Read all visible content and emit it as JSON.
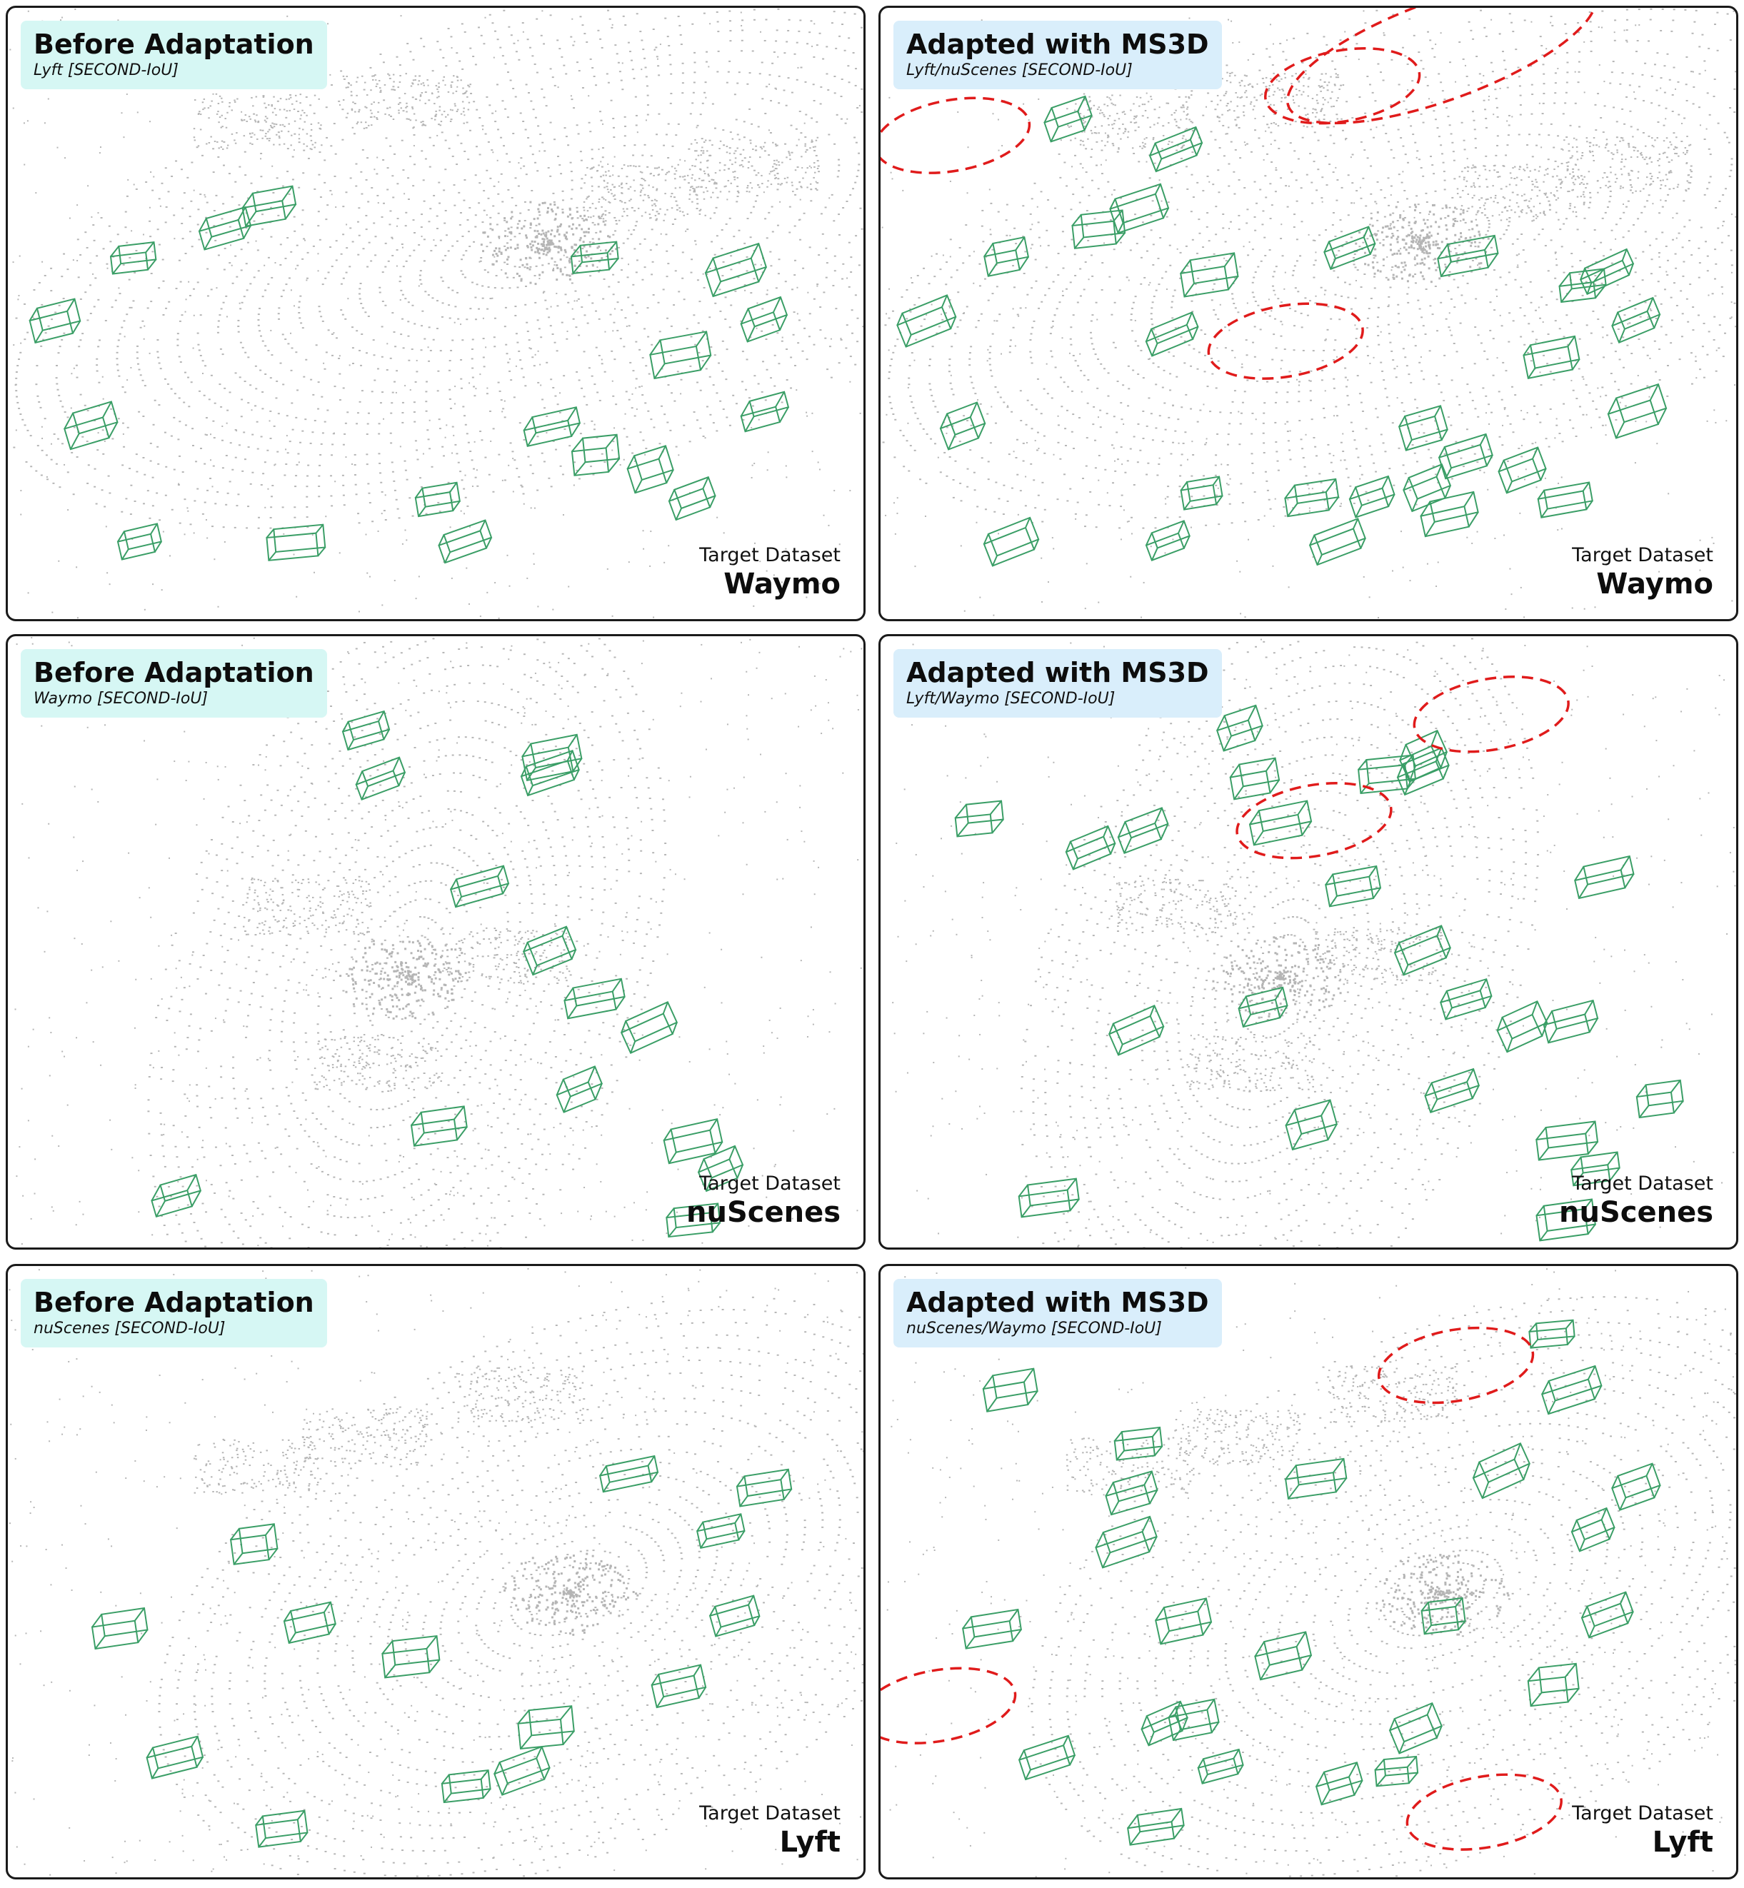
{
  "panels": [
    {
      "title": "Before Adaptation",
      "subtitle": "Lyft [SECOND-IoU]",
      "target_caption": "Target Dataset",
      "target_name": "Waymo"
    },
    {
      "title": "Adapted with MS3D",
      "subtitle": "Lyft/nuScenes [SECOND-IoU]",
      "target_caption": "Target Dataset",
      "target_name": "Waymo"
    },
    {
      "title": "Before Adaptation",
      "subtitle": "Waymo [SECOND-IoU]",
      "target_caption": "Target Dataset",
      "target_name": "nuScenes"
    },
    {
      "title": "Adapted with MS3D",
      "subtitle": "Lyft/Waymo [SECOND-IoU]",
      "target_caption": "Target Dataset",
      "target_name": "nuScenes"
    },
    {
      "title": "Before Adaptation",
      "subtitle": "nuScenes [SECOND-IoU]",
      "target_caption": "Target Dataset",
      "target_name": "Lyft"
    },
    {
      "title": "Adapted with MS3D",
      "subtitle": "nuScenes/Waymo [SECOND-IoU]",
      "target_caption": "Target Dataset",
      "target_name": "Lyft"
    }
  ],
  "colors": {
    "point_cloud": "#b5b5b5",
    "box": "#3a9e66",
    "highlight": "#e01b1b",
    "before_label_bg": "#d6f7f4",
    "after_label_bg": "#d9eefb"
  }
}
